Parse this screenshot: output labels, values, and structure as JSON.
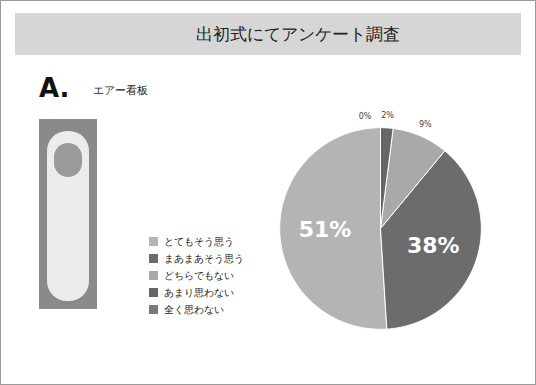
{
  "chart_data": {
    "type": "pie",
    "title": "出初式にてアンケート調査",
    "subtitle": "エアー看板",
    "annotations": [
      "A."
    ],
    "categories": [
      "とてもそう思う",
      "まあまあそう思う",
      "どちらでもない",
      "あまり思わない",
      "全く思わない"
    ],
    "values": [
      51,
      38,
      9,
      2,
      0
    ],
    "value_labels": [
      "51%",
      "38%",
      "9%",
      "2%",
      "0%"
    ],
    "colors": [
      "#b4b4b4",
      "#6c6c6c",
      "#a9a9a9",
      "#666666",
      "#7a7a7a"
    ],
    "data_labels": true,
    "legend": "left"
  }
}
